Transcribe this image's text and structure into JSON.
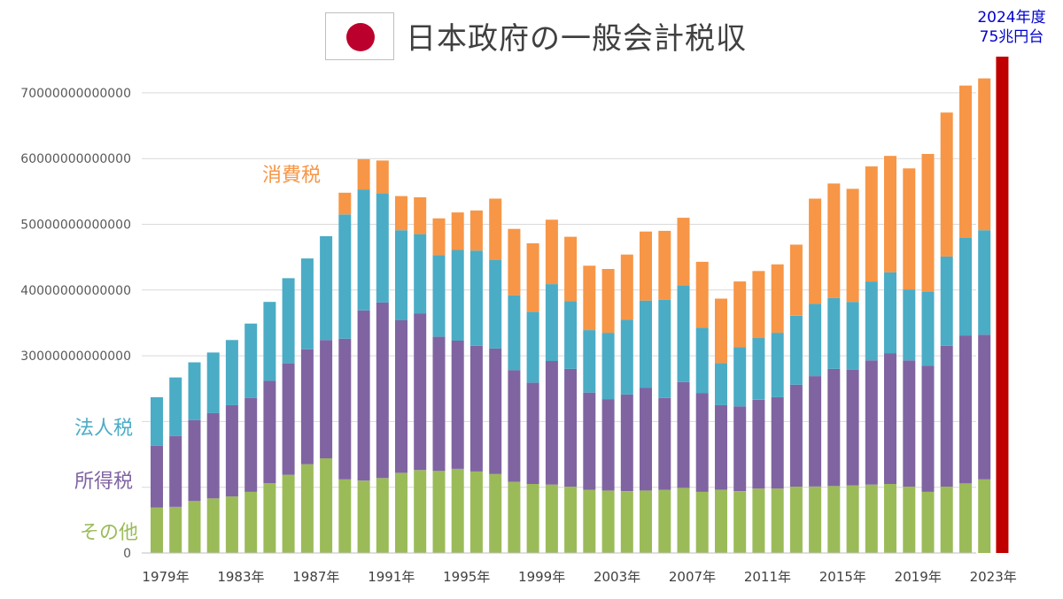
{
  "chart_data": {
    "type": "bar",
    "stacked": true,
    "title": "日本政府の一般会計税収",
    "ylim": [
      0,
      75000000000000
    ],
    "yticks": [
      0,
      10000000000000,
      20000000000000,
      30000000000000,
      40000000000000,
      50000000000000,
      60000000000000,
      70000000000000
    ],
    "ytick_labels": [
      "0",
      "",
      "",
      "30000000000000",
      "40000000000000",
      "50000000000000",
      "60000000000000",
      "70000000000000"
    ],
    "categories": [
      "1979",
      "1980",
      "1981",
      "1982",
      "1983",
      "1984",
      "1985",
      "1986",
      "1987",
      "1988",
      "1989",
      "1990",
      "1991",
      "1992",
      "1993",
      "1994",
      "1995",
      "1996",
      "1997",
      "1998",
      "1999",
      "2000",
      "2001",
      "2002",
      "2003",
      "2004",
      "2005",
      "2006",
      "2007",
      "2008",
      "2009",
      "2010",
      "2011",
      "2012",
      "2013",
      "2014",
      "2015",
      "2016",
      "2017",
      "2018",
      "2019",
      "2020",
      "2021",
      "2022",
      "2023"
    ],
    "xtick_labels": [
      "1979年",
      "",
      "",
      "",
      "1983年",
      "",
      "",
      "",
      "1987年",
      "",
      "",
      "",
      "1991年",
      "",
      "",
      "",
      "1995年",
      "",
      "",
      "",
      "1999年",
      "",
      "",
      "",
      "2003年",
      "",
      "",
      "",
      "2007年",
      "",
      "",
      "",
      "2011年",
      "",
      "",
      "",
      "2015年",
      "",
      "",
      "",
      "2019年",
      "",
      "",
      "",
      "2023年"
    ],
    "series": [
      {
        "name": "その他",
        "color": "#9bbb59",
        "values": [
          6.9,
          7.0,
          7.9,
          8.3,
          8.6,
          9.3,
          10.6,
          11.9,
          13.5,
          14.4,
          11.2,
          11.0,
          11.4,
          12.2,
          12.6,
          12.5,
          12.8,
          12.4,
          12.0,
          10.8,
          10.5,
          10.4,
          10.1,
          9.6,
          9.5,
          9.4,
          9.5,
          9.6,
          9.9,
          9.3,
          9.6,
          9.4,
          9.8,
          9.8,
          10.1,
          10.1,
          10.2,
          10.3,
          10.4,
          10.5,
          10.1,
          9.3,
          10.1,
          10.6,
          11.2
        ]
      },
      {
        "name": "所得税",
        "color": "#8064a2",
        "values": [
          9.4,
          10.8,
          12.3,
          13.0,
          13.9,
          14.3,
          15.6,
          17.0,
          17.5,
          18.0,
          21.4,
          25.9,
          26.7,
          23.2,
          23.8,
          20.4,
          19.5,
          19.1,
          19.1,
          17.0,
          15.4,
          18.8,
          17.9,
          14.8,
          13.9,
          14.7,
          15.6,
          14.0,
          16.1,
          15.0,
          12.9,
          12.9,
          13.5,
          13.9,
          15.5,
          16.8,
          17.8,
          17.6,
          18.9,
          19.9,
          19.2,
          19.2,
          21.4,
          22.5,
          22.0
        ]
      },
      {
        "name": "法人税",
        "color": "#4bacc6",
        "values": [
          7.4,
          8.9,
          8.8,
          9.2,
          9.9,
          11.3,
          12.0,
          12.9,
          13.8,
          15.8,
          18.9,
          18.4,
          16.6,
          13.7,
          12.1,
          12.4,
          13.8,
          14.5,
          13.5,
          11.4,
          10.8,
          11.7,
          10.3,
          9.5,
          10.1,
          11.4,
          13.3,
          14.9,
          14.7,
          10.0,
          6.4,
          9.0,
          9.4,
          9.8,
          10.5,
          11.0,
          10.8,
          10.3,
          12.0,
          12.3,
          10.8,
          11.2,
          13.6,
          14.9,
          15.9
        ]
      },
      {
        "name": "消費税",
        "color": "#f79646",
        "values": [
          0,
          0,
          0,
          0,
          0,
          0,
          0,
          0,
          0,
          0,
          3.3,
          4.6,
          5.0,
          5.2,
          5.6,
          5.6,
          5.7,
          6.1,
          9.3,
          10.1,
          10.4,
          9.8,
          9.8,
          9.8,
          9.7,
          9.9,
          10.5,
          10.5,
          10.3,
          10.0,
          9.8,
          10.0,
          10.2,
          10.4,
          10.8,
          16.0,
          17.4,
          17.2,
          17.5,
          17.7,
          18.4,
          21.0,
          21.9,
          23.1,
          23.1
        ]
      }
    ],
    "series_labels": [
      "消費税",
      "法人税",
      "所得税",
      "その他"
    ],
    "value_unit": "兆円",
    "callout": {
      "lines": [
        "2024年度",
        "75兆円台"
      ],
      "value": 75.5,
      "color": "#c00000"
    }
  }
}
